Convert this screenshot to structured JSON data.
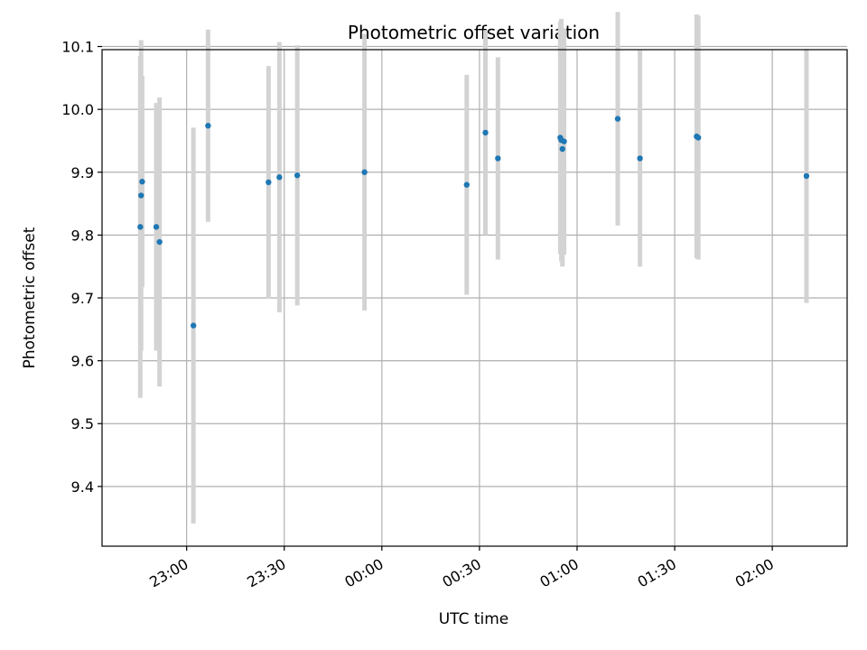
{
  "chart_data": {
    "type": "scatter",
    "title": "Photometric offset variation",
    "xlabel": "UTC time",
    "ylabel": "Photometric offset",
    "grid": true,
    "x_unit": "UTC time",
    "xlim": [
      "22:34",
      "02:23"
    ],
    "ylim": [
      9.305,
      10.095
    ],
    "x_ticks": [
      "23:00",
      "23:30",
      "00:00",
      "00:30",
      "01:00",
      "01:30",
      "02:00"
    ],
    "y_ticks": [
      9.4,
      9.5,
      9.6,
      9.7,
      9.8,
      9.9,
      10.0,
      10.1
    ],
    "y_tick_labels": [
      "9.4",
      "9.5",
      "9.6",
      "9.7",
      "9.8",
      "9.9",
      "10.0",
      "10.1"
    ],
    "colors": {
      "marker": "#1f77b4",
      "errorbar": "#d3d3d3",
      "grid": "#b0b0b0"
    },
    "series": [
      {
        "points": [
          {
            "x": "22:45:45",
            "y": 9.813,
            "err_low": 0.272,
            "err_high": 0.272
          },
          {
            "x": "22:46:00",
            "y": 9.863,
            "err_low": 0.247,
            "err_high": 0.247
          },
          {
            "x": "22:46:20",
            "y": 9.885,
            "err_low": 0.168,
            "err_high": 0.168
          },
          {
            "x": "22:50:40",
            "y": 9.813,
            "err_low": 0.197,
            "err_high": 0.197
          },
          {
            "x": "22:51:40",
            "y": 9.789,
            "err_low": 0.23,
            "err_high": 0.23
          },
          {
            "x": "23:02:05",
            "y": 9.656,
            "err_low": 0.315,
            "err_high": 0.315
          },
          {
            "x": "23:06:35",
            "y": 9.974,
            "err_low": 0.153,
            "err_high": 0.153
          },
          {
            "x": "23:25:10",
            "y": 9.884,
            "err_low": 0.185,
            "err_high": 0.185
          },
          {
            "x": "23:28:30",
            "y": 9.892,
            "err_low": 0.215,
            "err_high": 0.215
          },
          {
            "x": "23:34:00",
            "y": 9.895,
            "err_low": 0.207,
            "err_high": 0.207
          },
          {
            "x": "23:54:40",
            "y": 9.9,
            "err_low": 0.22,
            "err_high": 0.22
          },
          {
            "x": "00:26:05",
            "y": 9.88,
            "err_low": 0.175,
            "err_high": 0.175
          },
          {
            "x": "00:31:50",
            "y": 9.963,
            "err_low": 0.163,
            "err_high": 0.163
          },
          {
            "x": "00:35:40",
            "y": 9.922,
            "err_low": 0.161,
            "err_high": 0.161
          },
          {
            "x": "00:54:50",
            "y": 9.955,
            "err_low": 0.185,
            "err_high": 0.185
          },
          {
            "x": "00:55:10",
            "y": 9.951,
            "err_low": 0.193,
            "err_high": 0.193
          },
          {
            "x": "00:55:30",
            "y": 9.937,
            "err_low": 0.187,
            "err_high": 0.187
          },
          {
            "x": "00:56:00",
            "y": 9.949,
            "err_low": 0.18,
            "err_high": 0.18
          },
          {
            "x": "01:12:30",
            "y": 9.985,
            "err_low": 0.17,
            "err_high": 0.17
          },
          {
            "x": "01:19:20",
            "y": 9.922,
            "err_low": 0.172,
            "err_high": 0.172
          },
          {
            "x": "01:36:45",
            "y": 9.957,
            "err_low": 0.194,
            "err_high": 0.194
          },
          {
            "x": "01:37:15",
            "y": 9.955,
            "err_low": 0.194,
            "err_high": 0.194
          },
          {
            "x": "02:10:30",
            "y": 9.894,
            "err_low": 0.202,
            "err_high": 0.202
          }
        ]
      }
    ]
  }
}
